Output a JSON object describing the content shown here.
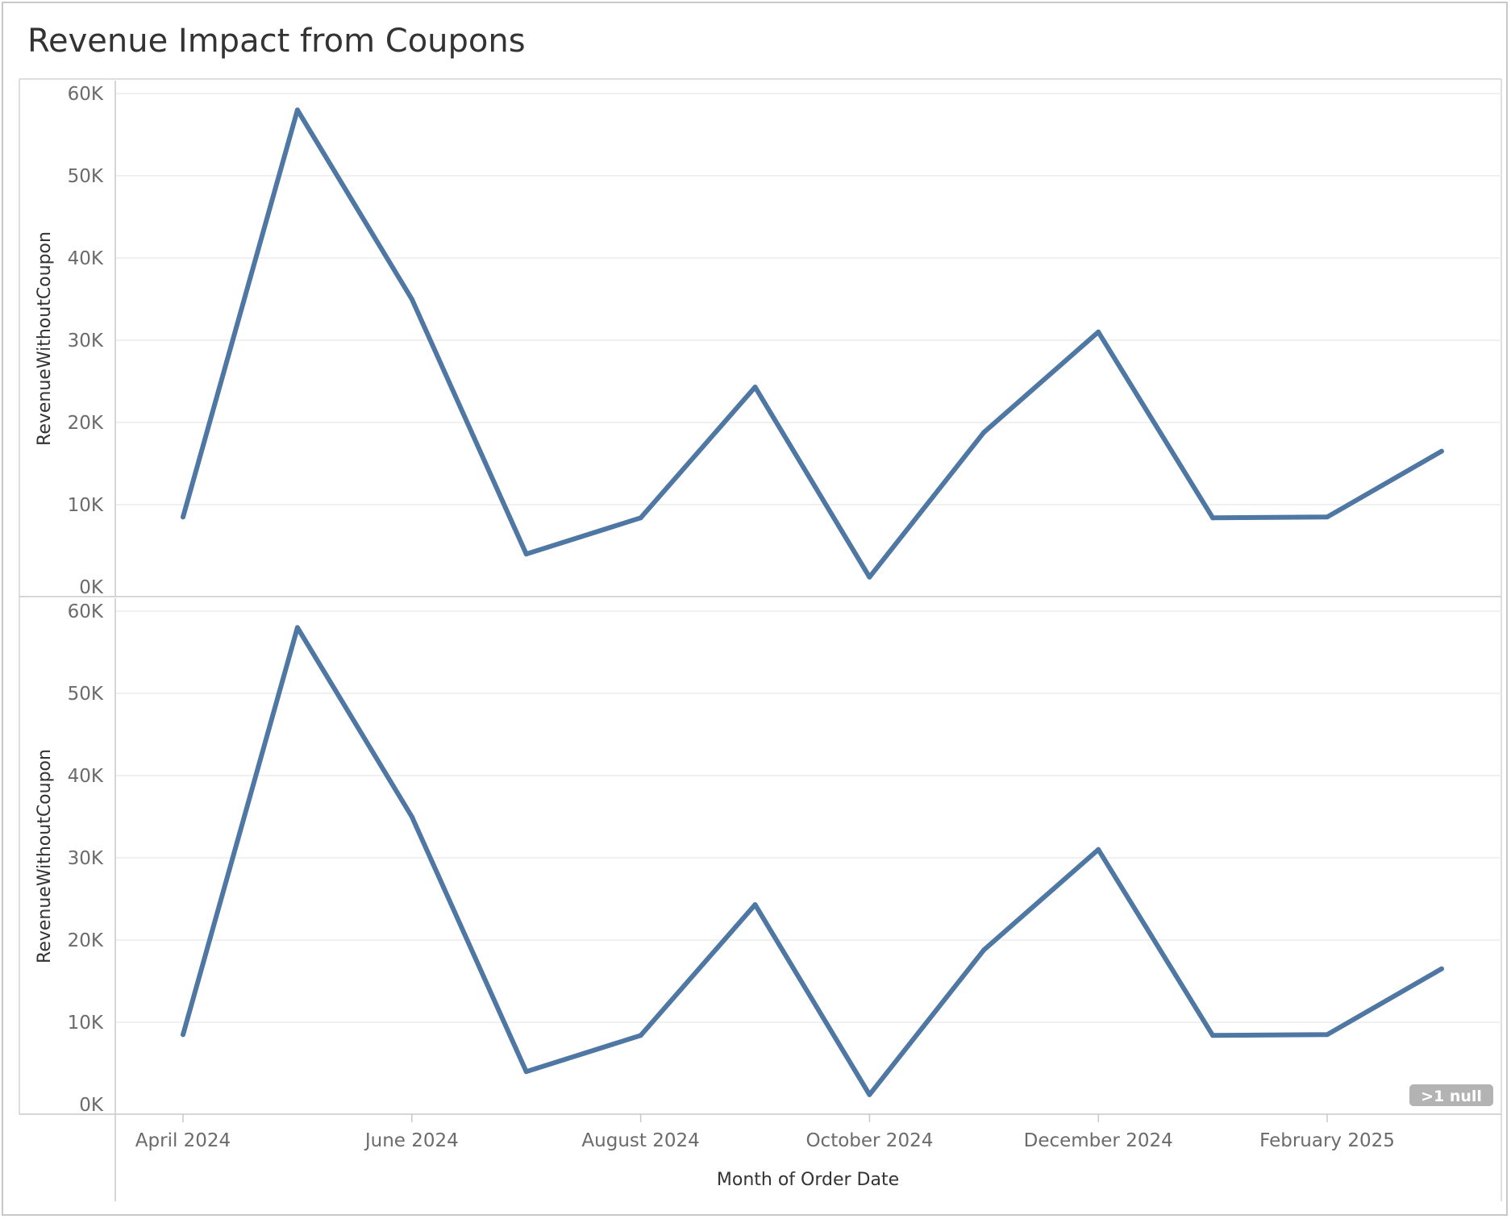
{
  "title": "Revenue Impact from Coupons",
  "chart_data": {
    "type": "line",
    "x_label": "Month of Order Date",
    "x_tick_labels": [
      "April 2024",
      "June 2024",
      "August 2024",
      "October 2024",
      "December 2024",
      "February 2025"
    ],
    "x": [
      "2024-04",
      "2024-05",
      "2024-06",
      "2024-07",
      "2024-08",
      "2024-09",
      "2024-10",
      "2024-11",
      "2024-12",
      "2025-01",
      "2025-02",
      "2025-03"
    ],
    "ylim": [
      0,
      60000
    ],
    "y_tick_labels": [
      "0K",
      "10K",
      "20K",
      "30K",
      "40K",
      "50K",
      "60K"
    ],
    "grid": true,
    "null_indicator": ">1 null",
    "color": "#4e77a3",
    "panels": [
      {
        "ylabel": "RevenueWithoutCoupon",
        "values": [
          8500,
          58000,
          35000,
          4000,
          8400,
          24300,
          1200,
          18800,
          31000,
          8400,
          8500,
          16500
        ]
      },
      {
        "ylabel": "RevenueWithoutCoupon",
        "values": [
          8500,
          58000,
          35000,
          4000,
          8400,
          24300,
          1200,
          18800,
          31000,
          8400,
          8500,
          16500
        ]
      }
    ]
  }
}
